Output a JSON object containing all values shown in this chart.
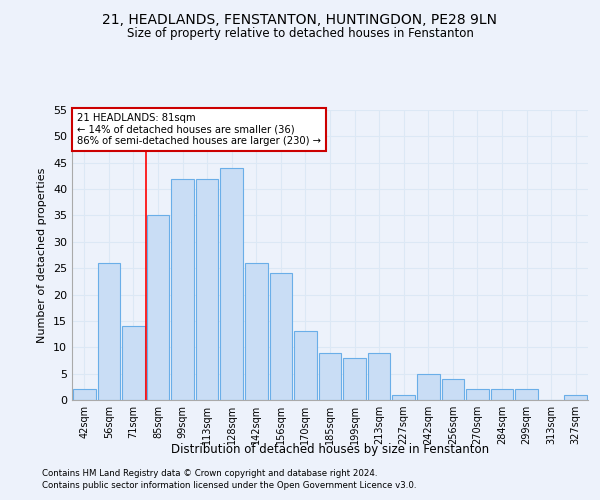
{
  "title": "21, HEADLANDS, FENSTANTON, HUNTINGDON, PE28 9LN",
  "subtitle": "Size of property relative to detached houses in Fenstanton",
  "xlabel": "Distribution of detached houses by size in Fenstanton",
  "ylabel": "Number of detached properties",
  "categories": [
    "42sqm",
    "56sqm",
    "71sqm",
    "85sqm",
    "99sqm",
    "113sqm",
    "128sqm",
    "142sqm",
    "156sqm",
    "170sqm",
    "185sqm",
    "199sqm",
    "213sqm",
    "227sqm",
    "242sqm",
    "256sqm",
    "270sqm",
    "284sqm",
    "299sqm",
    "313sqm",
    "327sqm"
  ],
  "values": [
    2,
    26,
    14,
    35,
    42,
    42,
    44,
    26,
    24,
    13,
    9,
    8,
    9,
    1,
    5,
    4,
    2,
    2,
    2,
    0,
    1
  ],
  "bar_color": "#c9ddf5",
  "bar_edge_color": "#6aaee8",
  "grid_color": "#dce8f5",
  "background_color": "#edf2fb",
  "red_line_x": 2.5,
  "annotation_title": "21 HEADLANDS: 81sqm",
  "annotation_line1": "← 14% of detached houses are smaller (36)",
  "annotation_line2": "86% of semi-detached houses are larger (230) →",
  "annotation_box_color": "#ffffff",
  "annotation_box_edge": "#cc0000",
  "ylim": [
    0,
    55
  ],
  "yticks": [
    0,
    5,
    10,
    15,
    20,
    25,
    30,
    35,
    40,
    45,
    50,
    55
  ],
  "footer1": "Contains HM Land Registry data © Crown copyright and database right 2024.",
  "footer2": "Contains public sector information licensed under the Open Government Licence v3.0."
}
